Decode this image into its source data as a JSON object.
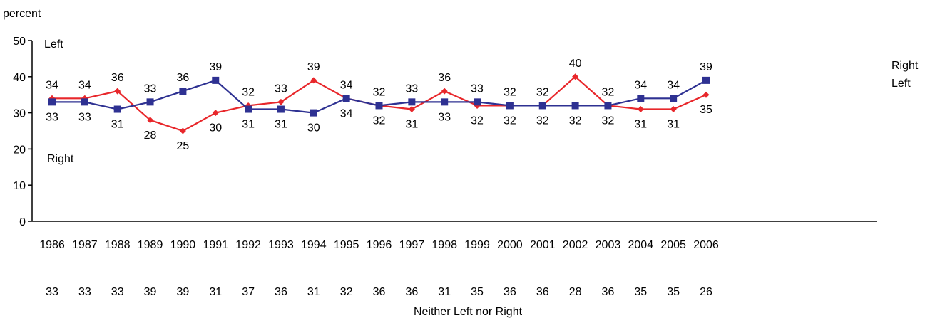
{
  "chart_data": {
    "type": "line",
    "ylabel": "percent",
    "ylim": [
      0,
      50
    ],
    "yticks": [
      0,
      10,
      20,
      30,
      40,
      50
    ],
    "x": [
      "1986",
      "1987",
      "1988",
      "1989",
      "1990",
      "1991",
      "1992",
      "1993",
      "1994",
      "1995",
      "1996",
      "1997",
      "1998",
      "1999",
      "2000",
      "2001",
      "2002",
      "2003",
      "2004",
      "2005",
      "2006"
    ],
    "series": [
      {
        "name": "Right",
        "color": "#e8272b",
        "marker": "diamond",
        "values": [
          34,
          34,
          36,
          28,
          25,
          30,
          32,
          33,
          39,
          34,
          32,
          31,
          36,
          32,
          32,
          32,
          40,
          32,
          31,
          31,
          35
        ]
      },
      {
        "name": "Left",
        "color": "#2e3192",
        "marker": "square",
        "values": [
          33,
          33,
          31,
          33,
          36,
          39,
          31,
          31,
          30,
          34,
          32,
          33,
          33,
          33,
          32,
          32,
          32,
          32,
          34,
          34,
          39
        ]
      }
    ],
    "neither": {
      "name": "Neither Left nor Right",
      "values": [
        33,
        33,
        33,
        39,
        39,
        31,
        37,
        36,
        31,
        32,
        36,
        36,
        31,
        35,
        36,
        36,
        28,
        36,
        35,
        35,
        26
      ]
    },
    "annotations": {
      "left": "Left",
      "right": "Right"
    },
    "legend": {
      "right": "Right",
      "left": "Left"
    },
    "grid": false
  }
}
